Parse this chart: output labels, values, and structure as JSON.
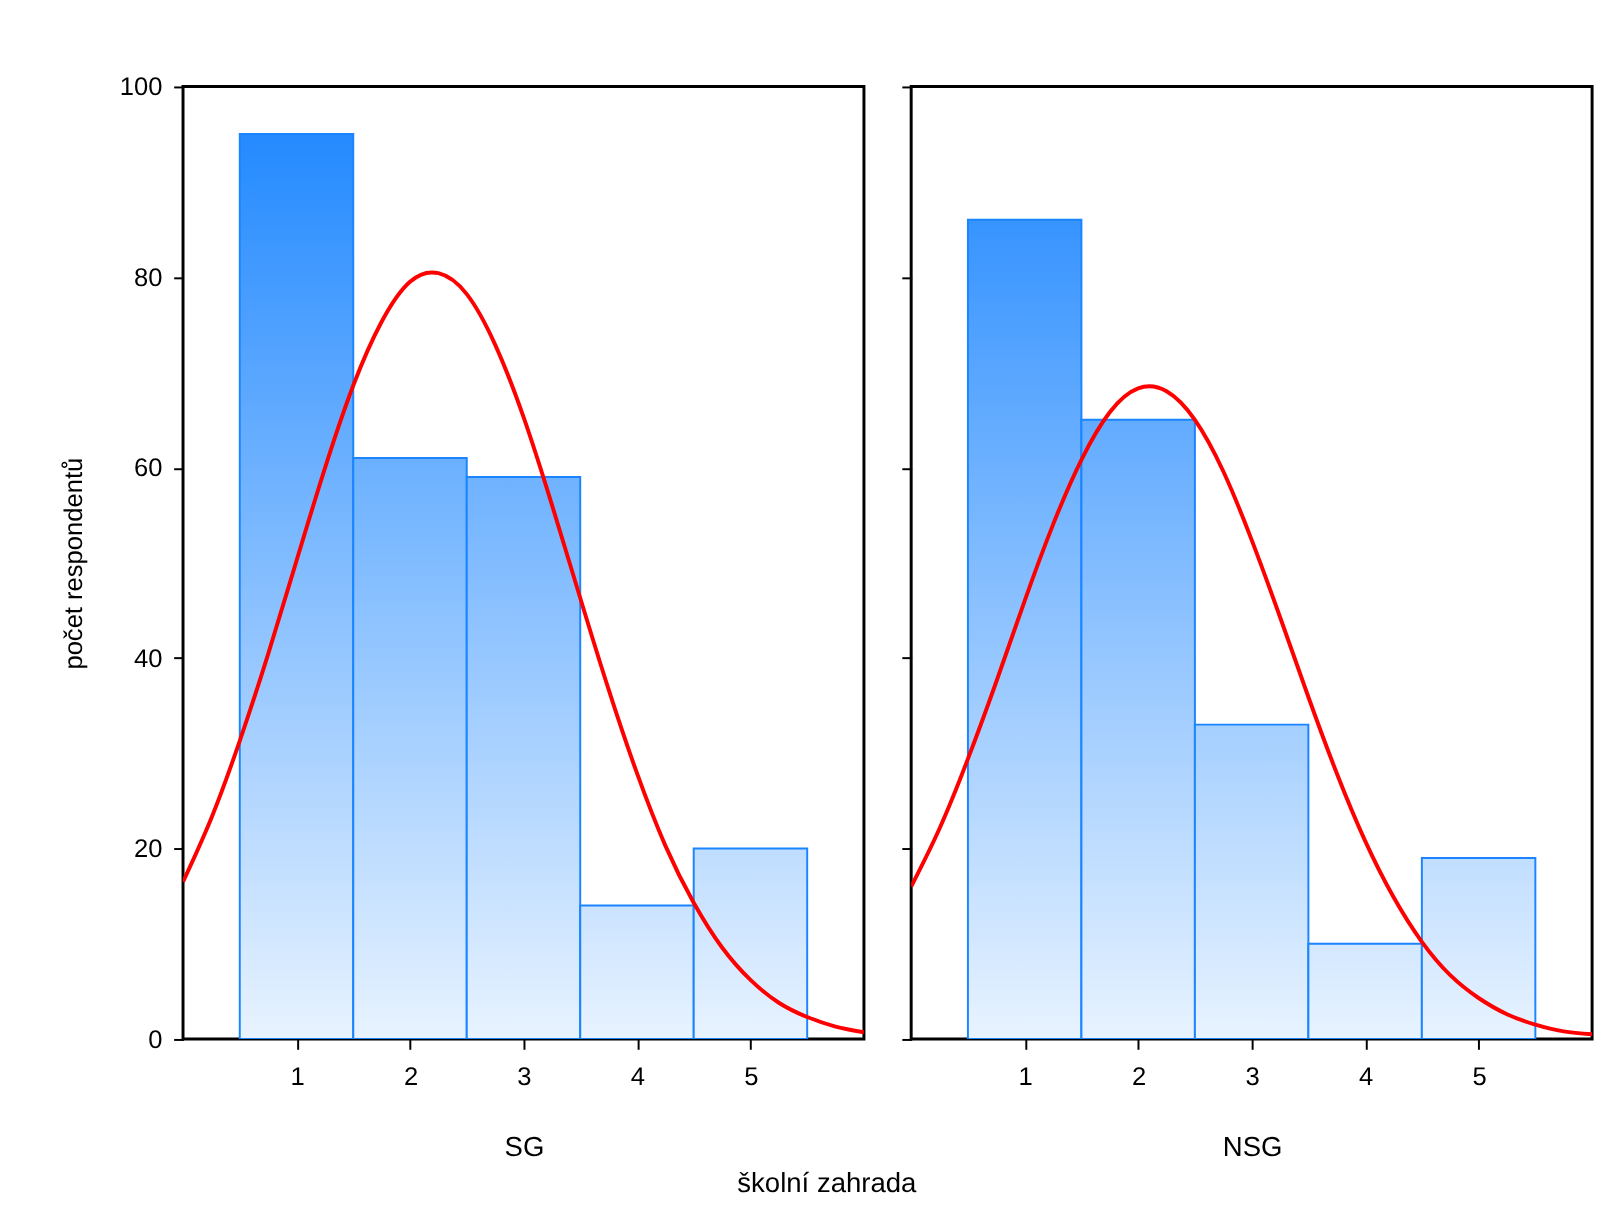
{
  "chart_data": [
    {
      "type": "histogram",
      "xlabel": "SG",
      "ylabel": "počet respondentů",
      "annotations": [
        "školní zahrada"
      ],
      "xlim": [
        0,
        6
      ],
      "xticks": [
        1,
        2,
        3,
        4,
        5
      ],
      "ylim": [
        0,
        100
      ],
      "yticks": [
        0,
        20,
        40,
        60,
        80,
        100
      ],
      "grid": false,
      "series": [
        {
          "type": "histogram",
          "color": "#1a85ff",
          "bins": [
            0.5,
            1.5,
            2.5,
            3.5,
            4.5,
            5.5
          ],
          "values": [
            95,
            61,
            59,
            14,
            20
          ]
        },
        {
          "type": "line",
          "color": "#ff0000",
          "x": [
            0,
            0.25,
            0.5,
            0.75,
            1,
            1.25,
            1.5,
            1.75,
            2,
            2.25,
            2.5,
            2.75,
            3,
            3.25,
            3.5,
            3.75,
            4,
            4.25,
            4.5,
            4.75,
            5,
            5.25,
            5.5,
            5.75,
            6
          ],
          "values": [
            16.5,
            23.2,
            31.3,
            40.4,
            50.2,
            59.9,
            68.6,
            75.3,
            79.5,
            80.4,
            78.2,
            72.9,
            65.3,
            56.1,
            46.3,
            36.7,
            27.9,
            20.3,
            14.3,
            9.6,
            6.2,
            3.8,
            2.3,
            1.3,
            0.7
          ]
        }
      ]
    },
    {
      "type": "histogram",
      "xlabel": "NSG",
      "xlim": [
        0,
        6
      ],
      "xticks": [
        1,
        2,
        3,
        4,
        5
      ],
      "ylim": [
        0,
        100
      ],
      "yticks": [
        0,
        20,
        40,
        60,
        80,
        100
      ],
      "grid": false,
      "tick_labels": "x",
      "series": [
        {
          "type": "histogram",
          "color": "#1a85ff",
          "bins": [
            0.5,
            1.5,
            2.5,
            3.5,
            4.5,
            5.5
          ],
          "values": [
            86,
            65,
            33,
            10,
            19
          ]
        },
        {
          "type": "line",
          "color": "#ff0000",
          "x": [
            0,
            0.25,
            0.5,
            0.75,
            1,
            1.25,
            1.5,
            1.75,
            2,
            2.25,
            2.5,
            2.75,
            3,
            3.25,
            3.5,
            3.75,
            4,
            4.25,
            4.5,
            4.75,
            5,
            5.25,
            5.5,
            5.75,
            6
          ],
          "values": [
            16.0,
            22.1,
            29.4,
            37.5,
            46.0,
            54.0,
            60.8,
            65.8,
            68.3,
            68.0,
            65.0,
            59.6,
            52.4,
            44.3,
            35.9,
            27.9,
            20.8,
            14.9,
            10.2,
            6.7,
            4.3,
            2.6,
            1.5,
            0.8,
            0.5
          ]
        }
      ]
    }
  ]
}
